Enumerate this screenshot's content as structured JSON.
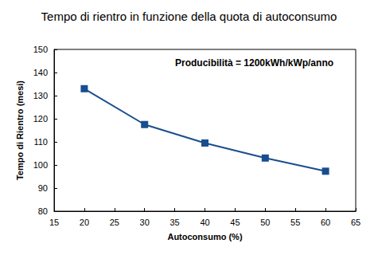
{
  "chart_data": {
    "type": "line",
    "title": "Tempo di rientro in funzione della quota di autoconsumo",
    "annotation": "Producibilità = 1200kWh/kWp/anno",
    "x_label": "Autoconsumo (%)",
    "y_label": "Tempo di Rientro (mesi)",
    "x": [
      20,
      30,
      40,
      50,
      60
    ],
    "values": [
      133,
      117.5,
      109.5,
      103,
      97.3
    ],
    "color": "#1a4d8f",
    "marker": "square",
    "line_style": "solid",
    "xlim": [
      15,
      65
    ],
    "xticks": [
      15,
      20,
      25,
      30,
      35,
      40,
      45,
      50,
      55,
      60,
      65
    ],
    "ylim": [
      80,
      150
    ],
    "yticks": [
      80,
      90,
      100,
      110,
      120,
      130,
      140,
      150
    ],
    "grid": false
  }
}
